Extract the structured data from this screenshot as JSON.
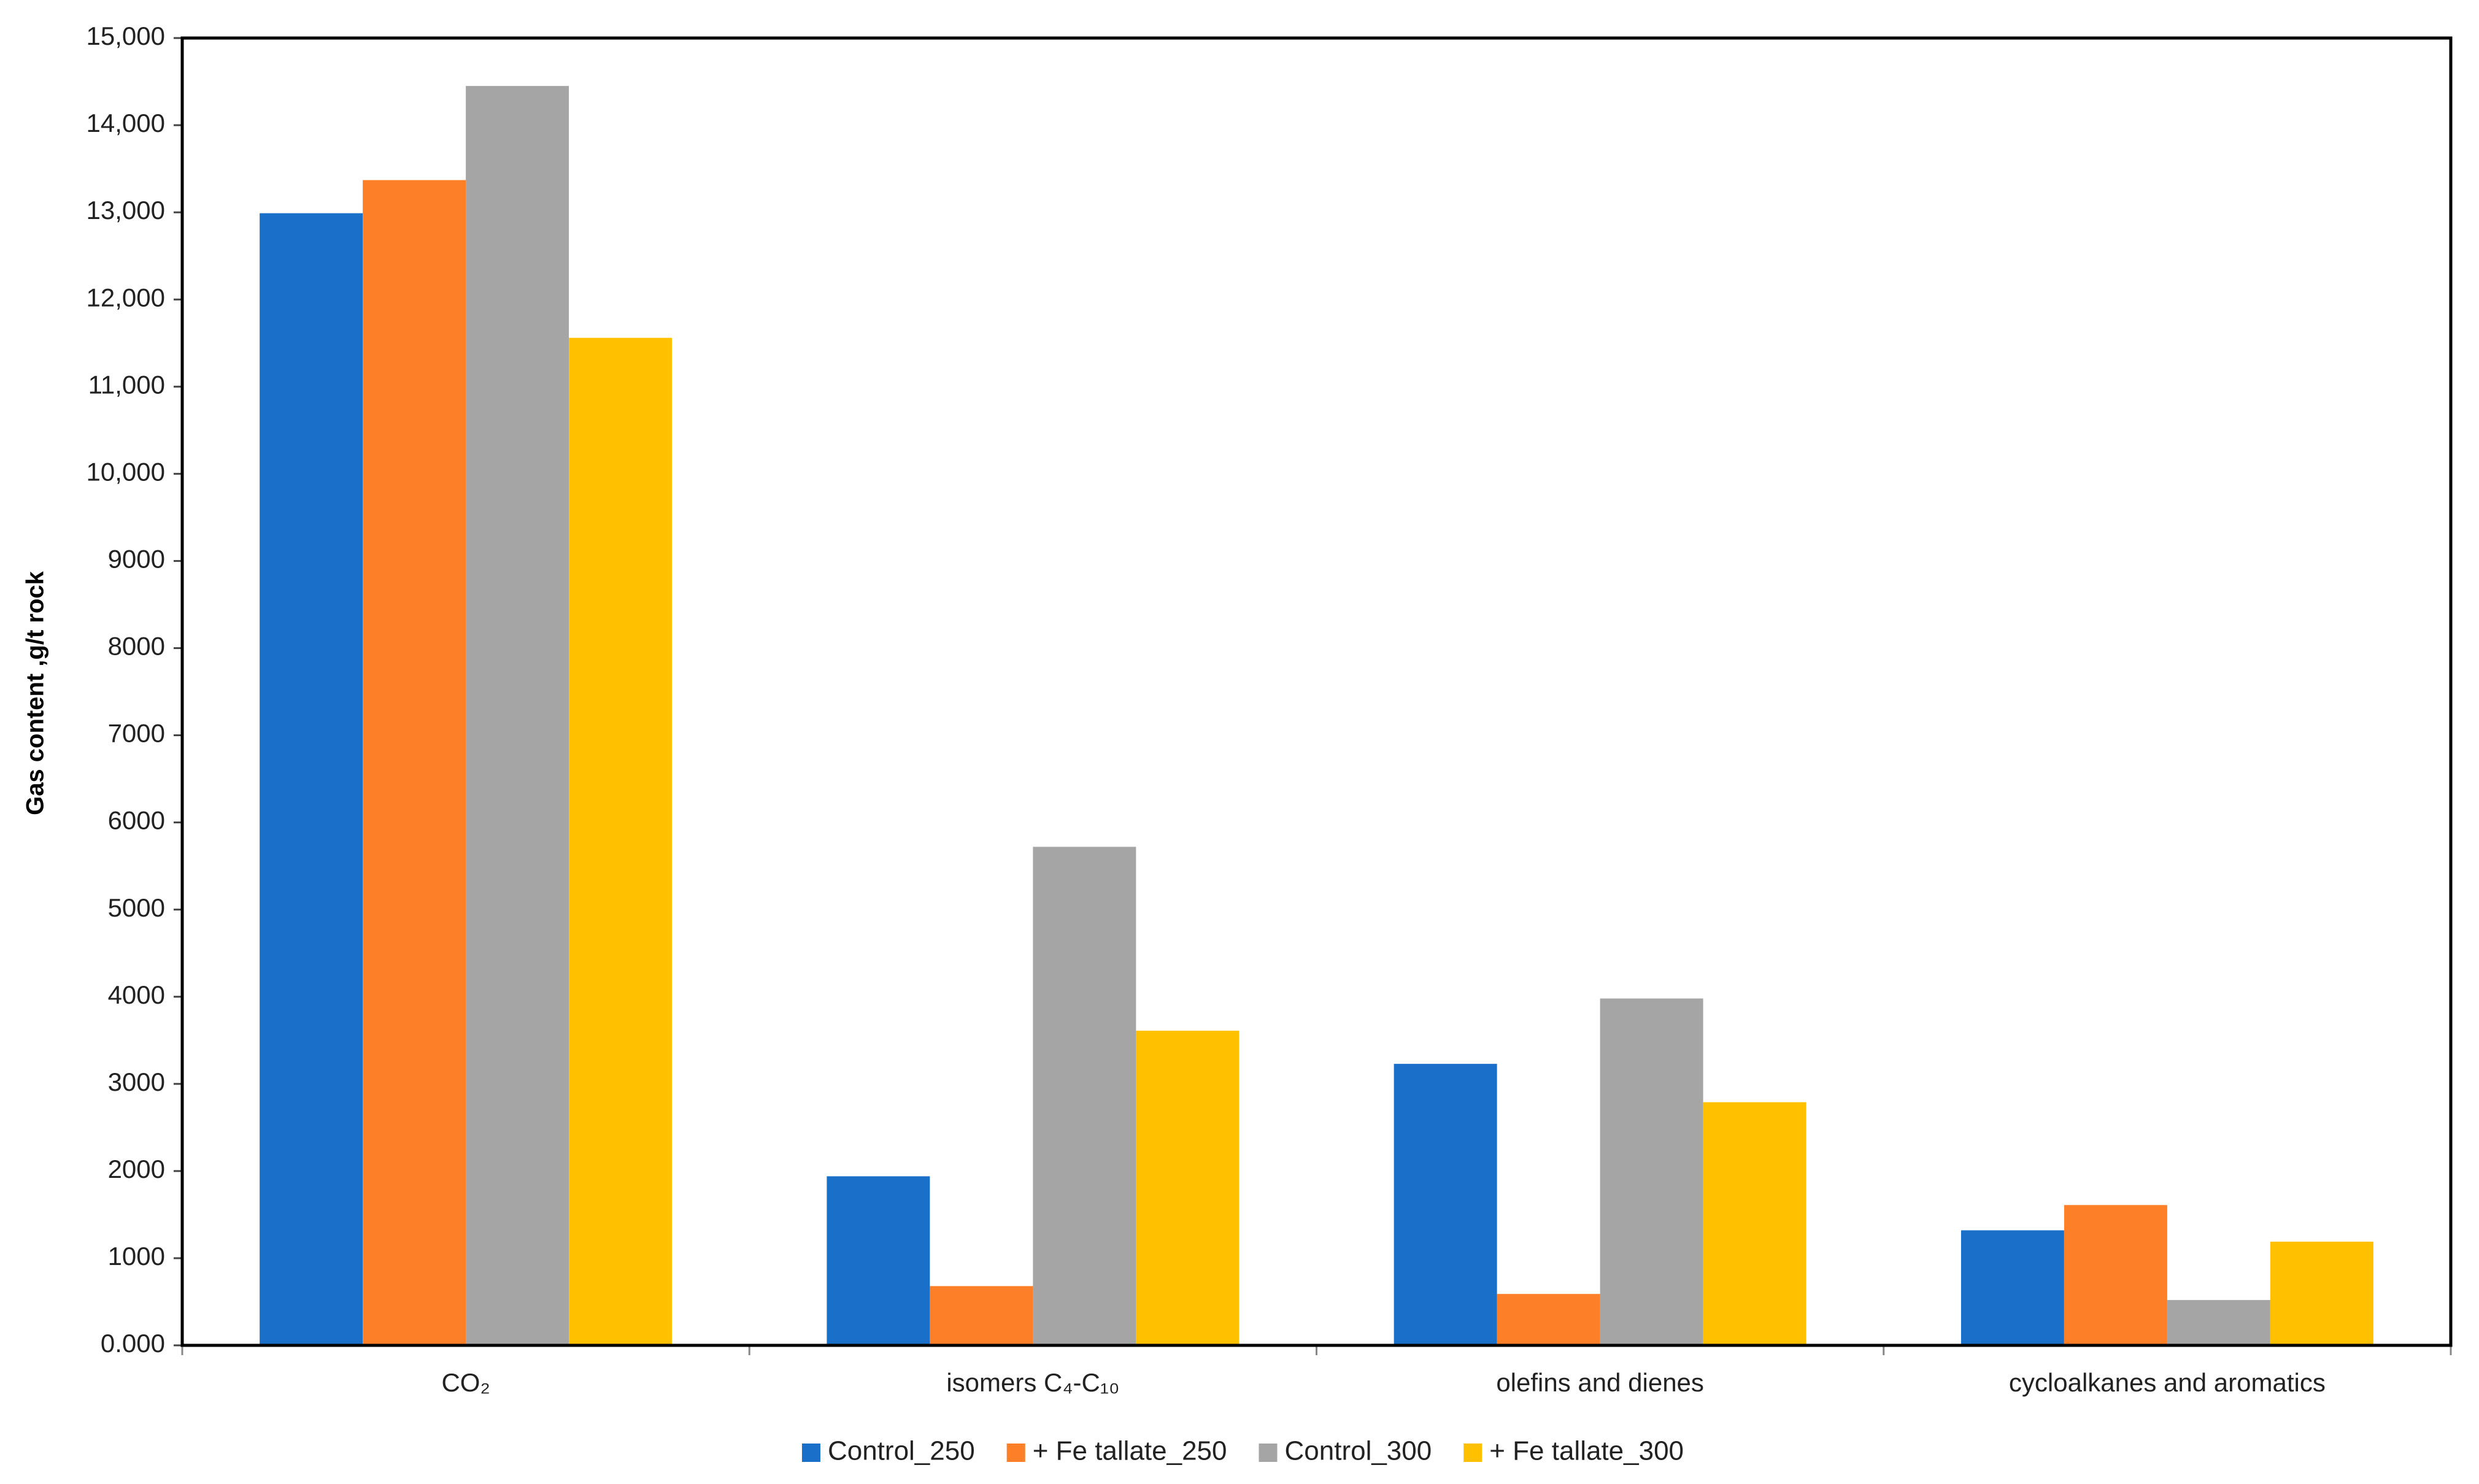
{
  "chart_data": {
    "type": "bar",
    "y_label": "Gas content ,g/t rock",
    "categories": [
      "CO₂",
      "isomers C₄-C₁₀",
      "olefins and dienes",
      "cycloalkanes and aromatics"
    ],
    "series": [
      {
        "name": "Control_250",
        "color": "#1a70c8",
        "values": [
          12990,
          1940,
          3230,
          1320
        ]
      },
      {
        "name": "+ Fe tallate_250",
        "color": "#fd7f27",
        "values": [
          13370,
          680,
          590,
          1610
        ]
      },
      {
        "name": "Control_300",
        "color": "#a5a5a5",
        "values": [
          14450,
          5720,
          3980,
          520
        ]
      },
      {
        "name": "+ Fe tallate_300",
        "color": "#ffc000",
        "values": [
          11560,
          3610,
          2790,
          1190
        ]
      }
    ],
    "ylim": [
      0,
      15000
    ],
    "yticks": [
      {
        "value": 0,
        "label": "0.000"
      },
      1000,
      2000,
      3000,
      4000,
      5000,
      6000,
      7000,
      8000,
      9000,
      {
        "value": 10000,
        "label": "10,000"
      },
      {
        "value": 11000,
        "label": "11,000"
      },
      {
        "value": 12000,
        "label": "12,000"
      },
      {
        "value": 13000,
        "label": "13,000"
      },
      {
        "value": 14000,
        "label": "14,000"
      },
      {
        "value": 15000,
        "label": "15,000"
      }
    ],
    "grid": false,
    "legend": "bottom"
  }
}
